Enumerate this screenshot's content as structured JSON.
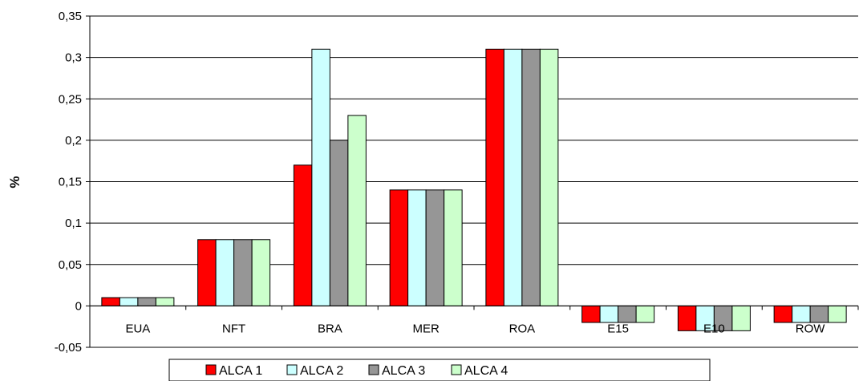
{
  "chart_data": {
    "type": "bar",
    "ylabel": "%",
    "xlabel": "",
    "categories": [
      "EUA",
      "NFT",
      "BRA",
      "MER",
      "ROA",
      "E15",
      "E10",
      "ROW"
    ],
    "series": [
      {
        "name": "ALCA 1",
        "color": "#ff0000",
        "values": [
          0.01,
          0.08,
          0.17,
          0.14,
          0.31,
          -0.02,
          -0.03,
          -0.02
        ]
      },
      {
        "name": "ALCA 2",
        "color": "#ccffff",
        "values": [
          0.01,
          0.08,
          0.31,
          0.14,
          0.31,
          -0.02,
          -0.03,
          -0.02
        ]
      },
      {
        "name": "ALCA 3",
        "color": "#969696",
        "values": [
          0.01,
          0.08,
          0.2,
          0.14,
          0.31,
          -0.02,
          -0.03,
          -0.02
        ]
      },
      {
        "name": "ALCA 4",
        "color": "#ccffcc",
        "values": [
          0.01,
          0.08,
          0.23,
          0.14,
          0.31,
          -0.02,
          -0.03,
          -0.02
        ]
      }
    ],
    "ylim": [
      -0.05,
      0.35
    ],
    "yticks": [
      -0.05,
      0,
      0.05,
      0.1,
      0.15,
      0.2,
      0.25,
      0.3,
      0.35
    ],
    "ytick_labels": [
      "-0,05",
      "0",
      "0,05",
      "0,1",
      "0,15",
      "0,2",
      "0,25",
      "0,3",
      "0,35"
    ],
    "grid": true,
    "legend_position": "bottom"
  }
}
